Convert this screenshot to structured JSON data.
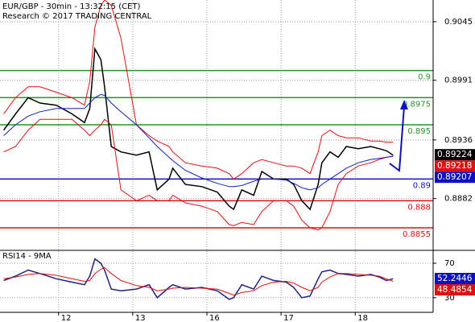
{
  "chart_data": [
    {
      "type": "line",
      "title": "EUR/GBP - 30min - 13:32:15 (CET)",
      "subtitle": "Research © 2017 TRADING CENTRAL",
      "x": [
        -0.74,
        -0.58,
        -0.41,
        -0.25,
        -0.03,
        0.18,
        0.35,
        0.42,
        0.49,
        0.57,
        0.62,
        0.71,
        0.84,
        1.05,
        1.22,
        1.33,
        1.49,
        1.54,
        1.71,
        1.93,
        2.14,
        2.3,
        2.36,
        2.47,
        2.63,
        2.74,
        2.9,
        3.07,
        3.17,
        3.28,
        3.39,
        3.5,
        3.55,
        3.66,
        3.77,
        3.88,
        4.04,
        4.21,
        4.32,
        4.42,
        4.51
      ],
      "series": [
        {
          "color": "#000000",
          "values": [
            0.8945,
            0.896,
            0.8975,
            0.897,
            0.8968,
            0.896,
            0.8952,
            0.8965,
            0.902,
            0.901,
            0.8985,
            0.893,
            0.8925,
            0.8922,
            0.8925,
            0.889,
            0.89,
            0.891,
            0.8895,
            0.8893,
            0.8888,
            0.8875,
            0.8872,
            0.889,
            0.8885,
            0.8907,
            0.89,
            0.89,
            0.8895,
            0.888,
            0.8872,
            0.8895,
            0.8915,
            0.8925,
            0.892,
            0.893,
            0.8928,
            0.893,
            0.8928,
            0.8926,
            0.8922
          ]
        },
        {
          "color": "#e01010",
          "values": [
            0.896,
            0.8975,
            0.8985,
            0.8985,
            0.898,
            0.8975,
            0.8968,
            0.899,
            0.904,
            0.906,
            0.9065,
            0.906,
            0.903,
            0.895,
            0.894,
            0.8935,
            0.893,
            0.8925,
            0.8915,
            0.8912,
            0.891,
            0.8905,
            0.89,
            0.8905,
            0.8915,
            0.8918,
            0.8915,
            0.8912,
            0.8912,
            0.891,
            0.8905,
            0.8925,
            0.894,
            0.8945,
            0.894,
            0.8938,
            0.8938,
            0.8935,
            0.8935,
            0.8934,
            0.8934
          ]
        },
        {
          "color": "#e01010",
          "values": [
            0.8925,
            0.893,
            0.8945,
            0.8955,
            0.8955,
            0.8955,
            0.8945,
            0.894,
            0.8945,
            0.895,
            0.8955,
            0.895,
            0.889,
            0.888,
            0.8885,
            0.888,
            0.888,
            0.8885,
            0.8878,
            0.8875,
            0.887,
            0.8858,
            0.8857,
            0.886,
            0.8858,
            0.887,
            0.888,
            0.888,
            0.8875,
            0.8862,
            0.8855,
            0.8853,
            0.8855,
            0.887,
            0.8895,
            0.8905,
            0.8912,
            0.8915,
            0.8918,
            0.892,
            0.8921
          ]
        },
        {
          "color": "#1020c0",
          "values": [
            0.894,
            0.895,
            0.8958,
            0.8962,
            0.8965,
            0.8965,
            0.8965,
            0.897,
            0.8975,
            0.8978,
            0.8977,
            0.897,
            0.8962,
            0.895,
            0.8938,
            0.893,
            0.892,
            0.8917,
            0.8908,
            0.8901,
            0.8896,
            0.8893,
            0.8893,
            0.8894,
            0.8898,
            0.89,
            0.89,
            0.8899,
            0.8896,
            0.8892,
            0.889,
            0.8892,
            0.8895,
            0.89,
            0.8905,
            0.891,
            0.8915,
            0.8918,
            0.8919,
            0.892,
            0.8921
          ]
        }
      ],
      "levels": [
        {
          "value": 0.9,
          "color": "#229922"
        },
        {
          "value": 0.8975,
          "color": "#229922"
        },
        {
          "value": 0.895,
          "color": "#229922"
        },
        {
          "value": 0.89,
          "color": "#1010c0"
        },
        {
          "value": 0.888,
          "color": "#e01010"
        },
        {
          "value": 0.8855,
          "color": "#e01010"
        }
      ],
      "price_tags": [
        {
          "value": 0.89224,
          "color": "#000000"
        },
        {
          "value": 0.89218,
          "color": "#e01010"
        },
        {
          "value": 0.89207,
          "color": "#1010c0"
        }
      ],
      "xlim": [
        -0.79,
        5.05
      ],
      "xticks": [
        {
          "value": 0,
          "label": "12"
        },
        {
          "value": 1,
          "label": "13"
        },
        {
          "value": 2,
          "label": "16"
        },
        {
          "value": 3,
          "label": "17"
        },
        {
          "value": 4,
          "label": "18"
        }
      ],
      "ylim": [
        0.8835,
        0.9065
      ],
      "yticks": [
        0.9045,
        0.8991,
        0.8936,
        0.8882
      ],
      "grid": true
    },
    {
      "type": "line",
      "title": "RSI14 - 9MA",
      "series": [
        {
          "color": "#202080",
          "values": [
            50,
            55,
            62,
            58,
            52,
            48,
            45,
            55,
            75,
            70,
            62,
            40,
            38,
            40,
            45,
            30,
            42,
            45,
            40,
            42,
            38,
            28,
            30,
            45,
            40,
            55,
            50,
            48,
            42,
            30,
            32,
            52,
            60,
            62,
            58,
            57,
            55,
            57,
            54,
            50,
            52
          ]
        },
        {
          "color": "#e01010",
          "values": [
            52,
            54,
            57,
            58,
            56,
            52,
            49,
            50,
            58,
            63,
            65,
            58,
            50,
            44,
            42,
            38,
            40,
            41,
            42,
            41,
            40,
            35,
            33,
            36,
            38,
            44,
            48,
            49,
            47,
            42,
            38,
            42,
            48,
            54,
            58,
            58,
            57,
            56,
            55,
            52,
            49
          ]
        }
      ],
      "price_tags": [
        {
          "value": 52.2446,
          "color": "#1010c0"
        },
        {
          "value": 48.4854,
          "color": "#e01010"
        }
      ],
      "ylim": [
        13,
        84
      ],
      "yticks": [
        70,
        30
      ],
      "grid": true
    }
  ]
}
